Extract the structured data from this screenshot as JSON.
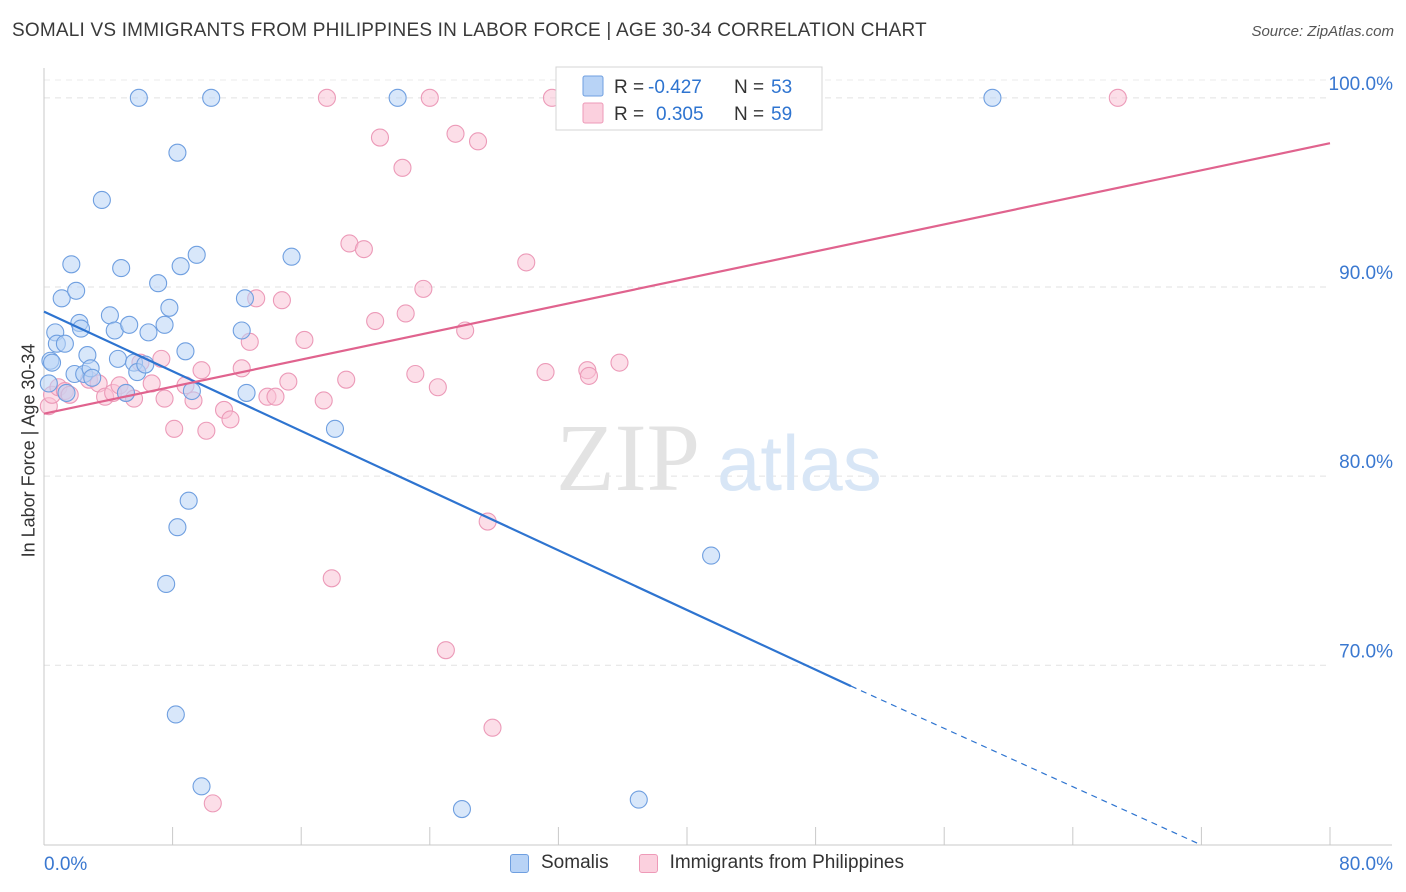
{
  "header": {
    "title": "SOMALI VS IMMIGRANTS FROM PHILIPPINES IN LABOR FORCE | AGE 30-34 CORRELATION CHART",
    "source": "Source: ZipAtlas.com"
  },
  "watermark": {
    "zip": "ZIP",
    "atlas": "atlas"
  },
  "stats_legend": {
    "rows": [
      {
        "r_label": "R =",
        "r_value": "-0.427",
        "n_label": "N =",
        "n_value": "53"
      },
      {
        "r_label": "R =",
        "r_value": "0.305",
        "n_label": "N =",
        "n_value": "59"
      }
    ]
  },
  "chart_data": {
    "type": "scatter",
    "title": "SOMALI VS IMMIGRANTS FROM PHILIPPINES IN LABOR FORCE | AGE 30-34 CORRELATION CHART",
    "xlabel": "",
    "ylabel": "In Labor Force | Age 30-34",
    "xlim": [
      0,
      80
    ],
    "ylim": [
      60.5,
      102
    ],
    "x_tick_labels": [
      "0.0%",
      "80.0%"
    ],
    "y_ticks": [
      70,
      80,
      90,
      100
    ],
    "y_tick_labels": [
      "70.0%",
      "80.0%",
      "90.0%",
      "100.0%"
    ],
    "grid": true,
    "legend_position": "top-center",
    "series": [
      {
        "name": "Somalis",
        "color": "#8fb8ee",
        "line_color": "#2e74d0",
        "trend": {
          "x": [
            0,
            50.2
          ],
          "y": [
            88.7,
            68.9
          ],
          "dashed_to": [
            72,
            60.5
          ]
        },
        "points": [
          [
            0.3,
            84.9
          ],
          [
            0.4,
            86.1
          ],
          [
            0.5,
            86.0
          ],
          [
            0.7,
            87.6
          ],
          [
            0.8,
            87.0
          ],
          [
            1.1,
            89.4
          ],
          [
            1.3,
            87.0
          ],
          [
            1.4,
            84.4
          ],
          [
            1.7,
            91.2
          ],
          [
            1.9,
            85.4
          ],
          [
            2.0,
            89.8
          ],
          [
            2.2,
            88.1
          ],
          [
            2.3,
            87.8
          ],
          [
            2.5,
            85.4
          ],
          [
            2.7,
            86.4
          ],
          [
            2.9,
            85.7
          ],
          [
            3.0,
            85.2
          ],
          [
            3.6,
            94.6
          ],
          [
            4.1,
            88.5
          ],
          [
            4.4,
            87.7
          ],
          [
            4.6,
            86.2
          ],
          [
            4.8,
            91.0
          ],
          [
            5.1,
            84.4
          ],
          [
            5.3,
            88.0
          ],
          [
            5.6,
            86.0
          ],
          [
            5.8,
            85.5
          ],
          [
            5.9,
            100.0
          ],
          [
            6.3,
            85.9
          ],
          [
            6.5,
            87.6
          ],
          [
            7.1,
            90.2
          ],
          [
            7.5,
            88.0
          ],
          [
            7.6,
            74.3
          ],
          [
            7.8,
            88.9
          ],
          [
            8.2,
            67.4
          ],
          [
            8.3,
            77.3
          ],
          [
            8.3,
            97.1
          ],
          [
            8.5,
            91.1
          ],
          [
            8.8,
            86.6
          ],
          [
            9.0,
            78.7
          ],
          [
            9.2,
            84.5
          ],
          [
            9.5,
            91.7
          ],
          [
            9.8,
            63.6
          ],
          [
            10.4,
            100.0
          ],
          [
            12.3,
            87.7
          ],
          [
            12.5,
            89.4
          ],
          [
            12.6,
            84.4
          ],
          [
            15.4,
            91.6
          ],
          [
            18.1,
            82.5
          ],
          [
            22.0,
            100.0
          ],
          [
            26.0,
            62.4
          ],
          [
            37.0,
            62.9
          ],
          [
            41.5,
            75.8
          ],
          [
            59.0,
            100.0
          ]
        ]
      },
      {
        "name": "Immigrants from Philippines",
        "color": "#f4aac4",
        "line_color": "#e0638e",
        "trend": {
          "x": [
            0,
            80
          ],
          "y": [
            83.3,
            97.6
          ]
        },
        "points": [
          [
            0.3,
            83.7
          ],
          [
            0.5,
            84.3
          ],
          [
            0.9,
            84.7
          ],
          [
            1.3,
            84.5
          ],
          [
            1.6,
            84.3
          ],
          [
            2.8,
            85.1
          ],
          [
            3.4,
            84.9
          ],
          [
            3.8,
            84.2
          ],
          [
            4.3,
            84.4
          ],
          [
            4.7,
            84.8
          ],
          [
            5.1,
            84.4
          ],
          [
            5.6,
            84.1
          ],
          [
            6.0,
            86.0
          ],
          [
            6.7,
            84.9
          ],
          [
            7.3,
            86.2
          ],
          [
            7.5,
            84.1
          ],
          [
            8.1,
            82.5
          ],
          [
            8.8,
            84.8
          ],
          [
            9.3,
            84.0
          ],
          [
            9.8,
            85.6
          ],
          [
            10.1,
            82.4
          ],
          [
            11.2,
            83.5
          ],
          [
            11.6,
            83.0
          ],
          [
            12.3,
            85.7
          ],
          [
            12.8,
            87.1
          ],
          [
            13.2,
            89.4
          ],
          [
            13.9,
            84.2
          ],
          [
            14.4,
            84.2
          ],
          [
            14.8,
            89.3
          ],
          [
            15.2,
            85.0
          ],
          [
            16.2,
            87.2
          ],
          [
            17.4,
            84.0
          ],
          [
            17.6,
            100.0
          ],
          [
            17.9,
            74.6
          ],
          [
            18.8,
            85.1
          ],
          [
            19.0,
            92.3
          ],
          [
            19.9,
            92.0
          ],
          [
            20.6,
            88.2
          ],
          [
            20.9,
            97.9
          ],
          [
            22.3,
            96.3
          ],
          [
            22.5,
            88.6
          ],
          [
            23.1,
            85.4
          ],
          [
            23.6,
            89.9
          ],
          [
            24.0,
            100.0
          ],
          [
            24.5,
            84.7
          ],
          [
            25.0,
            70.8
          ],
          [
            25.6,
            98.1
          ],
          [
            26.2,
            87.7
          ],
          [
            27.0,
            97.7
          ],
          [
            27.6,
            77.6
          ],
          [
            27.9,
            66.7
          ],
          [
            30.0,
            91.3
          ],
          [
            31.2,
            85.5
          ],
          [
            31.6,
            100.0
          ],
          [
            33.8,
            85.6
          ],
          [
            33.9,
            85.3
          ],
          [
            35.8,
            86.0
          ],
          [
            66.8,
            100.0
          ],
          [
            10.5,
            62.7
          ]
        ]
      }
    ]
  },
  "bottom_legend": {
    "items": [
      {
        "label": "Somalis",
        "fill": "#b8d3f6",
        "border": "#6f9fe0"
      },
      {
        "label": "Immigrants from Philippines",
        "fill": "#fbd0de",
        "border": "#ee9ab8"
      }
    ]
  }
}
